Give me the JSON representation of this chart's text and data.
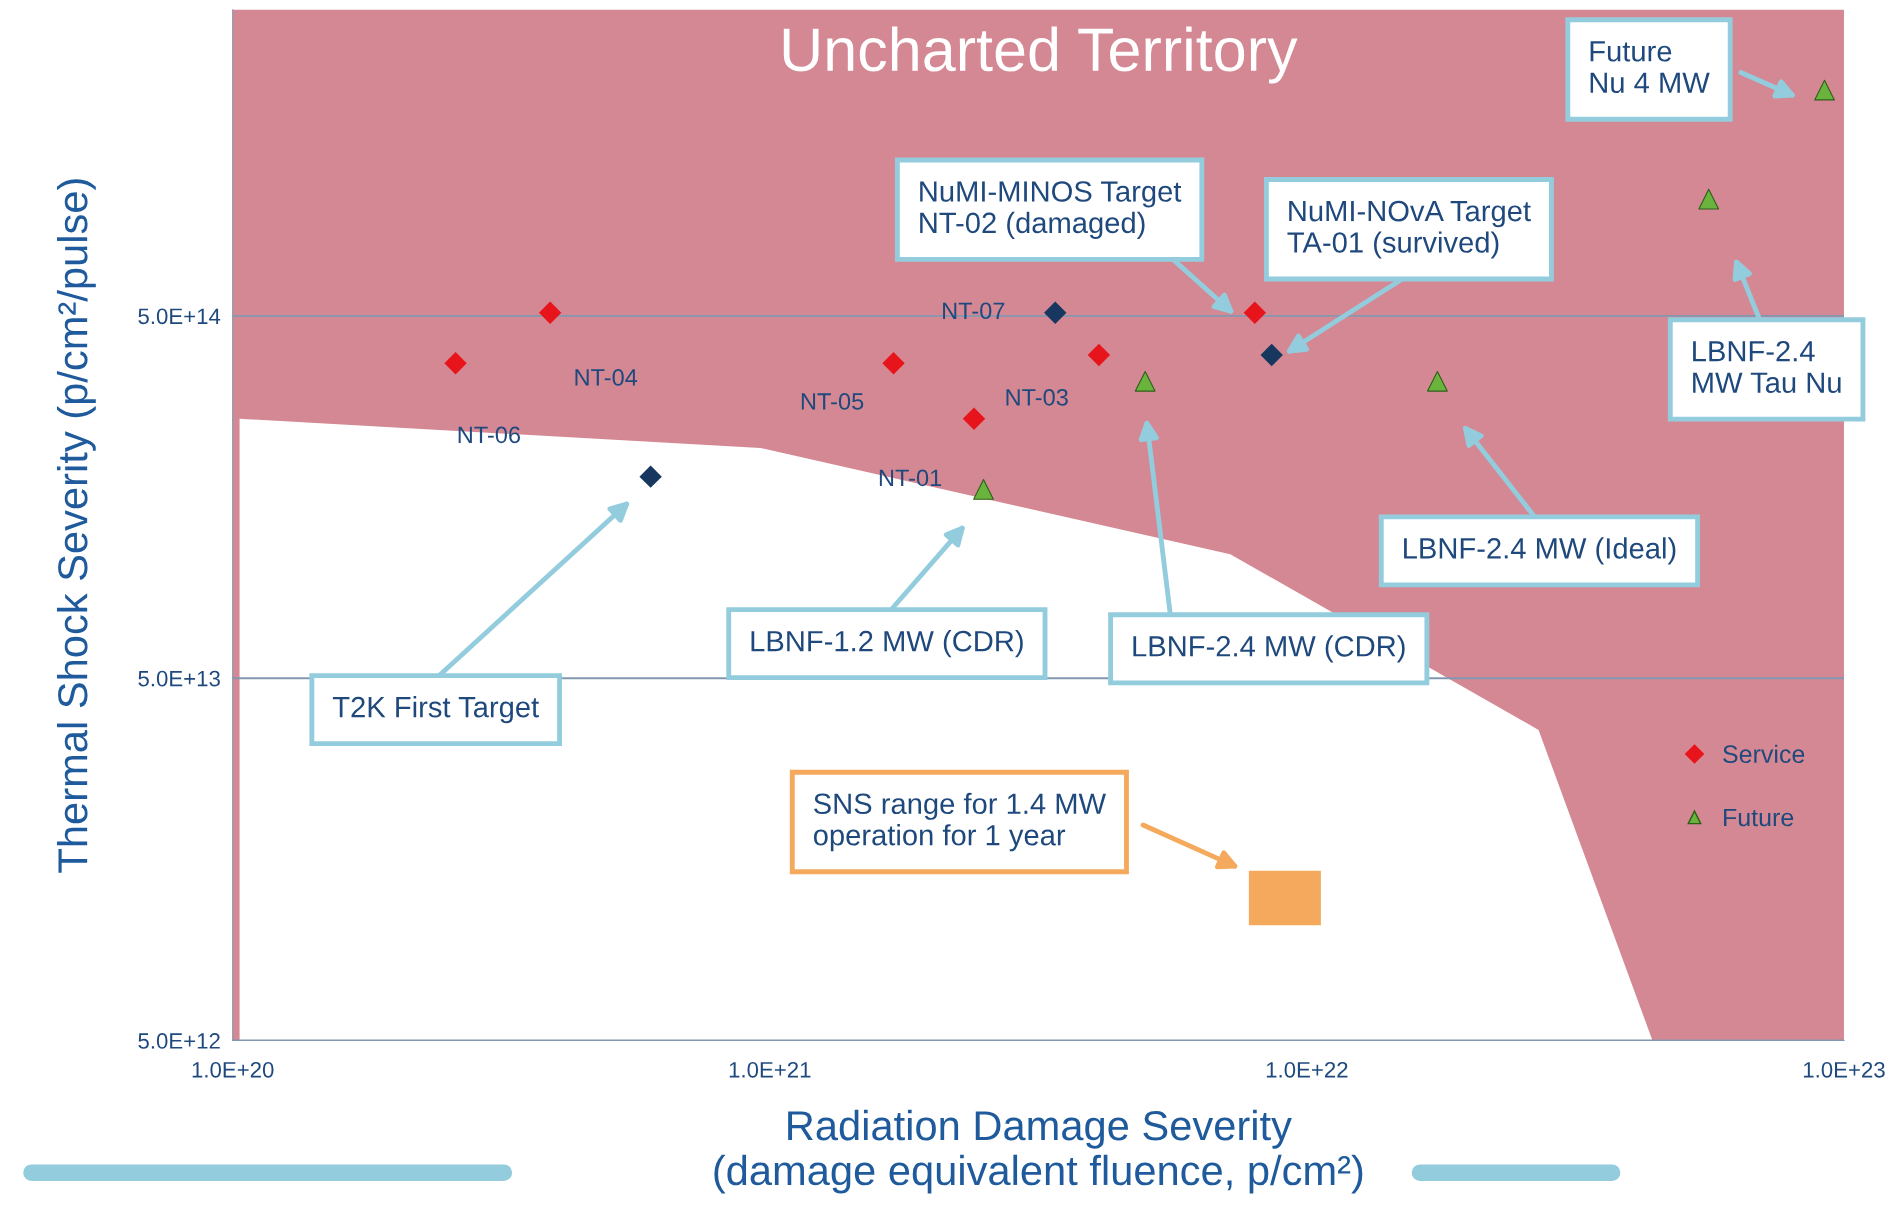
{
  "chart_data": {
    "type": "scatter",
    "xlabel": "Radiation Damage Severity\n(damage equivalent fluence, p/cm²)",
    "ylabel": "Thermal Shock Severity (p/cm²/pulse)",
    "log": "xy",
    "xlim": [
      1e+20,
      1e+23
    ],
    "ylim": [
      5000000000000.0,
      3500000000000000.0
    ],
    "xticks": [
      {
        "value": 1e+20,
        "label": "1.0E+20"
      },
      {
        "value": 1e+21,
        "label": "1.0E+21"
      },
      {
        "value": 1e+22,
        "label": "1.0E+22"
      },
      {
        "value": 1e+23,
        "label": "1.0E+23"
      }
    ],
    "yticks": [
      {
        "value": 5000000000000.0,
        "label": "5.0E+12"
      },
      {
        "value": 50000000000000.0,
        "label": "5.0E+13"
      },
      {
        "value": 500000000000000.0,
        "label": "5.0E+14"
      }
    ],
    "grid": "y",
    "legend": "right",
    "series": [
      {
        "type": "area",
        "color": "#ffffff",
        "x": [
          1.03e+20,
          9.6e+20,
          7.2e+21,
          2.7e+22,
          4.4e+22,
          1e+23
        ],
        "values": [
          260000000000000.0,
          216000000000000.0,
          110000000000000.0,
          36000000000000.0,
          5000000000000.0,
          5000000000000.0
        ]
      },
      {
        "type": "bar",
        "color": "#f5a95d",
        "x": [
          9.1e+21
        ],
        "values": [
          4300000000000.0
        ],
        "base": [
          10400000000000.0
        ]
      },
      {
        "name": "Service",
        "marker": "diamond",
        "color": "#e8141b",
        "x": [
          2.6e+20,
          3.9e+20,
          1.7e+21,
          2.4e+21,
          4.1e+21,
          8e+21
        ],
        "values": [
          370000000000000.0,
          510000000000000.0,
          370000000000000.0,
          260000000000000.0,
          390000000000000.0,
          510000000000000.0
        ]
      },
      {
        "marker": "diamond",
        "color": "#17375e",
        "x": [
          6e+20,
          3.4e+21,
          8.6e+21
        ],
        "values": [
          180000000000000.0,
          510000000000000.0,
          390000000000000.0
        ]
      },
      {
        "name": "Future",
        "marker": "triangle",
        "color": "#6ab43e",
        "x": [
          2.5e+21,
          5e+21,
          1.75e+22,
          5.6e+22,
          9.2e+22
        ],
        "values": [
          166000000000000.0,
          330000000000000.0,
          330000000000000.0,
          1050000000000000.0,
          2100000000000000.0
        ]
      }
    ],
    "annotations": [
      "Uncharted Territory",
      "Future\nNu 4 MW",
      "NuMI-MINOS Target\nNT-02 (damaged)",
      "NuMI-NOvA Target\nTA-01 (survived)",
      "LBNF-2.4\nMW Tau Nu",
      "LBNF-2.4 MW (Ideal)",
      "LBNF-2.4 MW (CDR)",
      "LBNF-1.2 MW (CDR)",
      "T2K First Target",
      "SNS range for 1.4 MW\noperation for 1 year",
      {
        "text": "NT-06",
        "x": 2.6e+20,
        "y": 370000000000000.0
      },
      {
        "text": "NT-04",
        "x": 3.9e+20,
        "y": 510000000000000.0
      },
      "NT-05",
      {
        "text": "NT-01",
        "x": 2.4e+21,
        "y": 260000000000000.0
      },
      "NT-03",
      {
        "text": "NT-07",
        "x": 3.4e+21,
        "y": 510000000000000.0
      }
    ]
  }
}
